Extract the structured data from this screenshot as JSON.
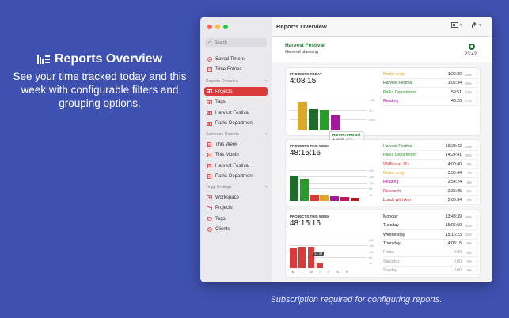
{
  "promo": {
    "title": "Reports Overview",
    "text": "See your time tracked today and this week with configurable filters and grouping options.",
    "footnote": "Subscription required for configuring reports."
  },
  "sidebar": {
    "search_placeholder": "Search",
    "top_items": [
      {
        "label": "Saved Timers",
        "icon": "play-circle-icon"
      },
      {
        "label": "Time Entries",
        "icon": "list-icon"
      }
    ],
    "reports_overview": {
      "header": "Reports Overview",
      "items": [
        "Projects",
        "Tags",
        "Harvest Festival",
        "Parks Department"
      ],
      "selected": "Projects"
    },
    "summary_reports": {
      "header": "Summary Reports",
      "items": [
        "This Week",
        "This Month",
        "Harvest Festival",
        "Parks Department"
      ]
    },
    "toggl_settings": {
      "header": "Toggl Settings",
      "items": [
        "Workspace",
        "Projects",
        "Tags",
        "Clients"
      ]
    }
  },
  "toolbar": {
    "title": "Reports Overview"
  },
  "timer": {
    "project": "Harvest Festival",
    "description": "General planning",
    "elapsed": "23:42"
  },
  "cards": [
    {
      "label": "PROJECTS TODAY",
      "total": "4:08:15",
      "gridlines": [
        "1.5h",
        "1h",
        "30m"
      ],
      "tooltip": {
        "name": "Harvest Festival",
        "time": "1:02:34",
        "pct": "25%"
      },
      "rows": [
        {
          "name": "Binder prep",
          "time": "1:22:30",
          "pct": "33%",
          "color": "#d9a92a"
        },
        {
          "name": "Harvest Festival",
          "time": "1:02:34",
          "pct": "25%",
          "color": "#1e6b2b"
        },
        {
          "name": "Parks Department",
          "time": "59:51",
          "pct": "24%",
          "color": "#2a9a2a"
        },
        {
          "name": "Reading",
          "time": "43:20",
          "pct": "17%",
          "color": "#a31a9c"
        }
      ]
    },
    {
      "label": "PROJECTS THIS WEEK",
      "total": "48:15:16",
      "gridlines": [
        "20h",
        "16h",
        "12h",
        "8h",
        "4h"
      ],
      "rows": [
        {
          "name": "Harvest Festival",
          "time": "16:23:42",
          "pct": "34%",
          "color": "#1e6b2b"
        },
        {
          "name": "Parks Department",
          "time": "14:24:41",
          "pct": "30%",
          "color": "#2a9a2a"
        },
        {
          "name": "Waffles at JJ's",
          "time": "4:00:40",
          "pct": "8%",
          "color": "#d93a3a"
        },
        {
          "name": "Binder prep",
          "time": "3:30:44",
          "pct": "7%",
          "color": "#d9a92a"
        },
        {
          "name": "Reading",
          "time": "2:54:24",
          "pct": "6%",
          "color": "#a31a9c"
        },
        {
          "name": "Research",
          "time": "2:35:25",
          "pct": "5%",
          "color": "#c2185b"
        },
        {
          "name": "Lunch with Ann",
          "time": "2:00:34",
          "pct": "4%",
          "color": "#b71c1c"
        }
      ]
    },
    {
      "label": "PROJECTS THIS WEEK",
      "total": "48:15:16",
      "gridlines": [
        "20h",
        "16h",
        "12h",
        "8h",
        "4h"
      ],
      "badge": "14:42",
      "days": [
        "M",
        "T",
        "W",
        "T",
        "F",
        "S",
        "S"
      ],
      "rows": [
        {
          "name": "Monday",
          "time": "13:43:39",
          "pct": "28%",
          "color": "#222"
        },
        {
          "name": "Tuesday",
          "time": "15:06:59",
          "pct": "31%",
          "color": "#222"
        },
        {
          "name": "Wednesday",
          "time": "15:16:23",
          "pct": "32%",
          "color": "#222"
        },
        {
          "name": "Thursday",
          "time": "4:08:15",
          "pct": "9%",
          "color": "#222"
        },
        {
          "name": "Friday",
          "time": "0:00",
          "pct": "0%",
          "color": "#999"
        },
        {
          "name": "Saturday",
          "time": "0:00",
          "pct": "0%",
          "color": "#999"
        },
        {
          "name": "Sunday",
          "time": "0:00",
          "pct": "0%",
          "color": "#999"
        }
      ]
    }
  ],
  "chart_data": [
    {
      "type": "bar",
      "categories": [
        "Binder prep",
        "Harvest Festival",
        "Parks Department",
        "Reading"
      ],
      "values": [
        1.375,
        1.043,
        0.998,
        0.722
      ],
      "ylim": [
        0,
        1.75
      ],
      "colors": [
        "#d9a92a",
        "#1e6b2b",
        "#2a9a2a",
        "#a31a9c"
      ]
    },
    {
      "type": "bar",
      "categories": [
        "Harvest Festival",
        "Parks Department",
        "Waffles at JJ's",
        "Binder prep",
        "Reading",
        "Research",
        "Lunch with Ann"
      ],
      "values": [
        16.4,
        14.4,
        4.0,
        3.5,
        2.9,
        2.6,
        2.0
      ],
      "ylim": [
        0,
        24
      ],
      "colors": [
        "#1e6b2b",
        "#2a9a2a",
        "#d93a3a",
        "#d9a92a",
        "#a31a9c",
        "#c2185b",
        "#b71c1c"
      ]
    },
    {
      "type": "bar",
      "categories": [
        "M",
        "T",
        "W",
        "T",
        "F",
        "S",
        "S"
      ],
      "values": [
        13.73,
        15.12,
        15.27,
        4.14,
        0,
        0,
        0
      ],
      "ylim": [
        0,
        24
      ],
      "colors": [
        "#d93a3a",
        "#d93a3a",
        "#d93a3a",
        "#d93a3a",
        "#d93a3a",
        "#d93a3a",
        "#d93a3a"
      ]
    }
  ]
}
